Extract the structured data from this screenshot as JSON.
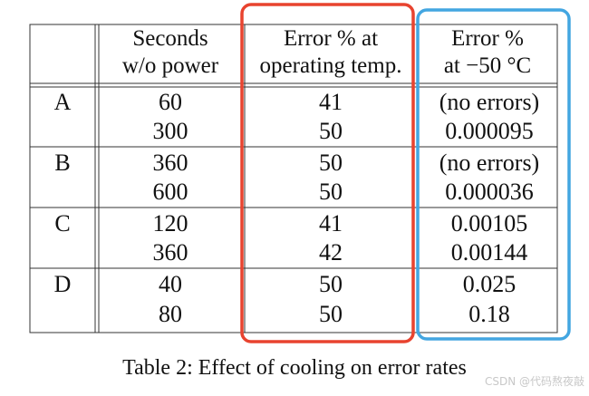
{
  "table": {
    "headers": {
      "col_label": "",
      "col_seconds": [
        "Seconds",
        "w/o power"
      ],
      "col_error_operating": [
        "Error % at",
        "operating temp."
      ],
      "col_error_cold": [
        "Error %",
        "at −50 °C"
      ]
    },
    "groups": [
      {
        "label": "A",
        "rows": [
          {
            "seconds": "60",
            "error_operating": "41",
            "error_cold": "(no errors)"
          },
          {
            "seconds": "300",
            "error_operating": "50",
            "error_cold": "0.000095"
          }
        ]
      },
      {
        "label": "B",
        "rows": [
          {
            "seconds": "360",
            "error_operating": "50",
            "error_cold": "(no errors)"
          },
          {
            "seconds": "600",
            "error_operating": "50",
            "error_cold": "0.000036"
          }
        ]
      },
      {
        "label": "C",
        "rows": [
          {
            "seconds": "120",
            "error_operating": "41",
            "error_cold": "0.00105"
          },
          {
            "seconds": "360",
            "error_operating": "42",
            "error_cold": "0.00144"
          }
        ]
      },
      {
        "label": "D",
        "rows": [
          {
            "seconds": "40",
            "error_operating": "50",
            "error_cold": "0.025"
          },
          {
            "seconds": "80",
            "error_operating": "50",
            "error_cold": "0.18"
          }
        ]
      }
    ],
    "caption": "Table 2: Effect of cooling on error rates"
  },
  "highlights": {
    "operating_column_color": "#e8432f",
    "cold_column_color": "#43a6e1"
  },
  "watermark": "CSDN @代码熬夜敲"
}
